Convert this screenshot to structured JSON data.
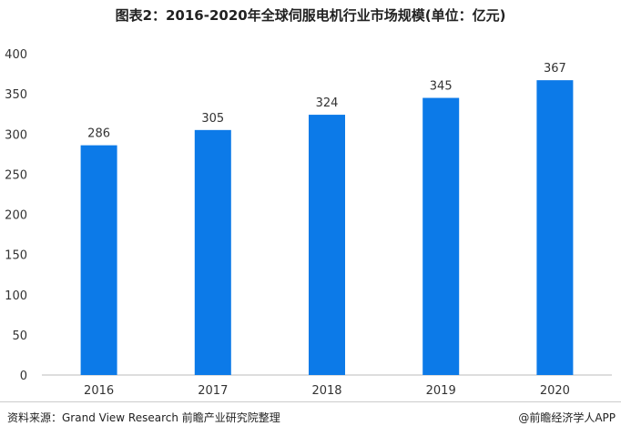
{
  "chart_data": {
    "type": "bar",
    "title": "图表2：2016-2020年全球伺服电机行业市场规模(单位：亿元)",
    "categories": [
      "2016",
      "2017",
      "2018",
      "2019",
      "2020"
    ],
    "values": [
      286,
      305,
      324,
      345,
      367
    ],
    "ylim": [
      0,
      400
    ],
    "yticks": [
      0,
      50,
      100,
      150,
      200,
      250,
      300,
      350,
      400
    ],
    "bar_color": "#0c7ae8",
    "grid": false,
    "legend": "none",
    "data_labels": true
  },
  "footer": {
    "source": "资料来源：Grand View Research 前瞻产业研究院整理",
    "brand": "@前瞻经济学人APP"
  }
}
